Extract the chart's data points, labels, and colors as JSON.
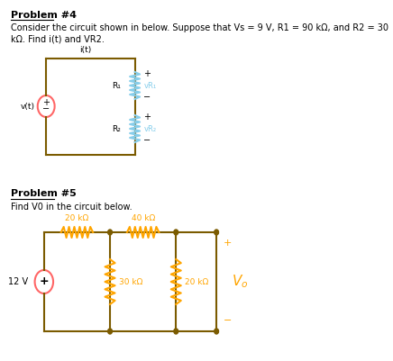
{
  "title4": "Problem #4",
  "title5": "Problem #5",
  "desc4_line1": "Consider the circuit shown in below. Suppose that Vs = 9 V, R1 = 90 kΩ, and R2 = 30",
  "desc4_line2": "kΩ. Find i(t) and VR2.",
  "desc5": "Find V0 in the circuit below.",
  "bg_color": "#ffffff",
  "text_color": "#000000",
  "circuit_color": "#7B5B00",
  "resistor_color_p4": "#87CEEB",
  "resistor_color_p5": "#FFA500",
  "source_color_p4": "#FF6666",
  "source_color_p5": "#FF6666"
}
